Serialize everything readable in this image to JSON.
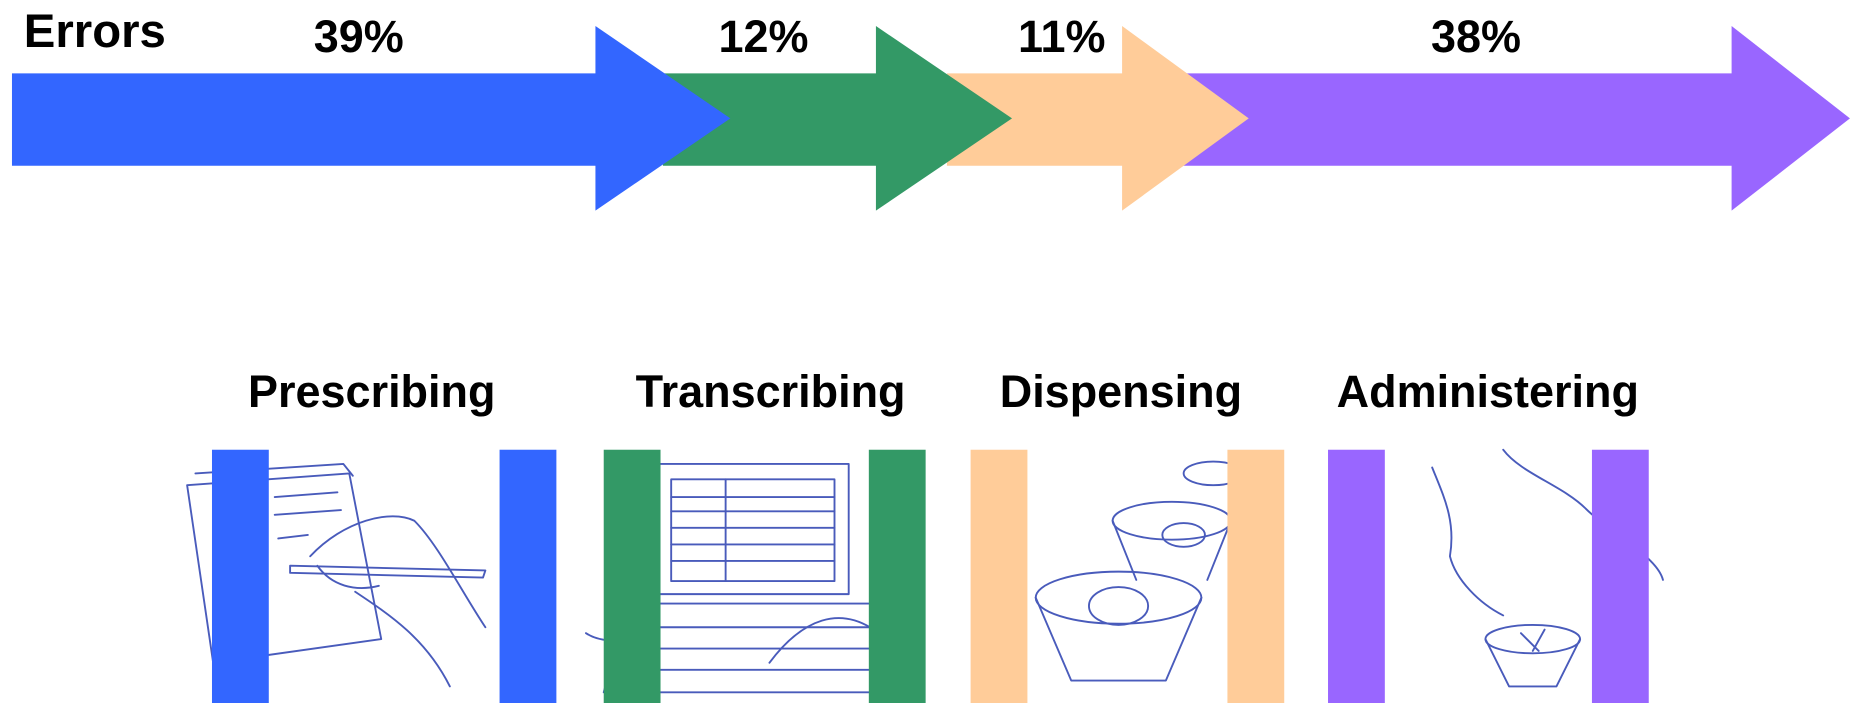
{
  "title": "Errors",
  "stages": [
    {
      "label": "Prescribing",
      "share": "39%",
      "color": "#3366ff"
    },
    {
      "label": "Transcribing",
      "share": "12%",
      "color": "#339966"
    },
    {
      "label": "Dispensing",
      "share": "11%",
      "color": "#ffcc99"
    },
    {
      "label": "Administering",
      "share": "38%",
      "color": "#9966ff"
    }
  ]
}
